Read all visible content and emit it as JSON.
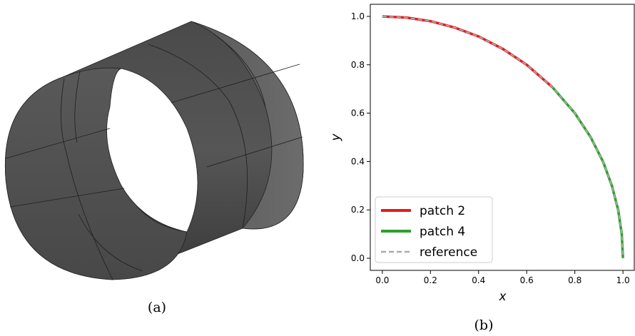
{
  "panel_a": {
    "caption": "(a)"
  },
  "panel_b": {
    "caption": "(b)"
  },
  "chart_data": {
    "type": "line",
    "xlabel": "x",
    "ylabel": "y",
    "xlim": [
      -0.05,
      1.05
    ],
    "ylim": [
      -0.05,
      1.05
    ],
    "xticks": [
      "0.0",
      "0.2",
      "0.4",
      "0.6",
      "0.8",
      "1.0"
    ],
    "yticks": [
      "0.0",
      "0.2",
      "0.4",
      "0.6",
      "0.8",
      "1.0"
    ],
    "grid": false,
    "legend_position": "bottom-left",
    "series": [
      {
        "name": "patch 2",
        "color": "#e41a1c",
        "style": "solid",
        "x": [
          0.0,
          0.1,
          0.2,
          0.3,
          0.4,
          0.5,
          0.6,
          0.707
        ],
        "y": [
          1.0,
          0.995,
          0.98,
          0.954,
          0.917,
          0.866,
          0.8,
          0.707
        ]
      },
      {
        "name": "patch 4",
        "color": "#2ca02c",
        "style": "solid",
        "x": [
          0.707,
          0.8,
          0.866,
          0.917,
          0.954,
          0.98,
          0.995,
          1.0
        ],
        "y": [
          0.707,
          0.6,
          0.5,
          0.4,
          0.3,
          0.2,
          0.1,
          0.0
        ]
      },
      {
        "name": "reference",
        "color": "#aaaaaa",
        "style": "dashed",
        "x": [
          0.0,
          0.1,
          0.2,
          0.3,
          0.4,
          0.5,
          0.6,
          0.707,
          0.8,
          0.866,
          0.917,
          0.954,
          0.98,
          0.995,
          1.0
        ],
        "y": [
          1.0,
          0.995,
          0.98,
          0.954,
          0.917,
          0.866,
          0.8,
          0.707,
          0.6,
          0.5,
          0.4,
          0.3,
          0.2,
          0.1,
          0.0
        ]
      }
    ]
  }
}
